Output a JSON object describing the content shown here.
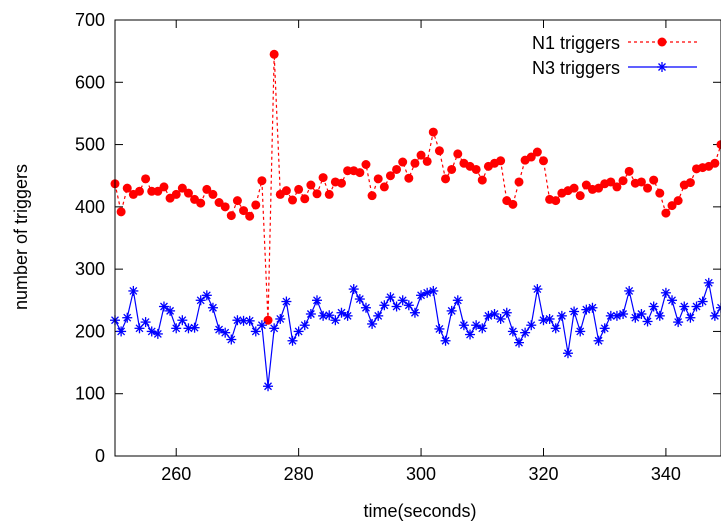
{
  "chart_data": {
    "type": "line",
    "title": "",
    "xlabel": "time(seconds)",
    "ylabel": "number of triggers",
    "xlim": [
      250,
      349
    ],
    "ylim": [
      0,
      700
    ],
    "x_ticks": [
      260,
      280,
      300,
      320,
      340
    ],
    "y_ticks": [
      0,
      100,
      200,
      300,
      400,
      500,
      600,
      700
    ],
    "grid": false,
    "legend_position": "top-right",
    "series": [
      {
        "name": "N1 triggers",
        "color": "#ff0000",
        "marker": "filled-circle",
        "line_style": "dashed",
        "x": [
          250,
          251,
          252,
          253,
          254,
          255,
          256,
          257,
          258,
          259,
          260,
          261,
          262,
          263,
          264,
          265,
          266,
          267,
          268,
          269,
          270,
          271,
          272,
          273,
          274,
          275,
          276,
          277,
          278,
          279,
          280,
          281,
          282,
          283,
          284,
          285,
          286,
          287,
          288,
          289,
          290,
          291,
          292,
          293,
          294,
          295,
          296,
          297,
          298,
          299,
          300,
          301,
          302,
          303,
          304,
          305,
          306,
          307,
          308,
          309,
          310,
          311,
          312,
          313,
          314,
          315,
          316,
          317,
          318,
          319,
          320,
          321,
          322,
          323,
          324,
          325,
          326,
          327,
          328,
          329,
          330,
          331,
          332,
          333,
          334,
          335,
          336,
          337,
          338,
          339,
          340,
          341,
          342,
          343,
          344,
          345,
          346,
          347,
          348,
          349
        ],
        "values": [
          437,
          392,
          430,
          420,
          425,
          445,
          425,
          425,
          432,
          414,
          420,
          430,
          422,
          412,
          406,
          428,
          420,
          407,
          400,
          386,
          410,
          394,
          385,
          403,
          442,
          218,
          645,
          420,
          426,
          411,
          428,
          413,
          435,
          421,
          447,
          420,
          440,
          438,
          458,
          458,
          455,
          468,
          418,
          445,
          432,
          450,
          460,
          472,
          446,
          470,
          483,
          473,
          520,
          490,
          445,
          460,
          485,
          470,
          465,
          460,
          443,
          465,
          470,
          474,
          410,
          404,
          440,
          475,
          480,
          488,
          474,
          412,
          410,
          422,
          426,
          430,
          418,
          435,
          428,
          430,
          437,
          440,
          432,
          442,
          457,
          438,
          440,
          430,
          443,
          422,
          390,
          402,
          410,
          435,
          439,
          461,
          463,
          465,
          470,
          500
        ]
      },
      {
        "name": "N3 triggers",
        "color": "#0000ff",
        "marker": "star",
        "line_style": "solid",
        "x": [
          250,
          251,
          252,
          253,
          254,
          255,
          256,
          257,
          258,
          259,
          260,
          261,
          262,
          263,
          264,
          265,
          266,
          267,
          268,
          269,
          270,
          271,
          272,
          273,
          274,
          275,
          276,
          277,
          278,
          279,
          280,
          281,
          282,
          283,
          284,
          285,
          286,
          287,
          288,
          289,
          290,
          291,
          292,
          293,
          294,
          295,
          296,
          297,
          298,
          299,
          300,
          301,
          302,
          303,
          304,
          305,
          306,
          307,
          308,
          309,
          310,
          311,
          312,
          313,
          314,
          315,
          316,
          317,
          318,
          319,
          320,
          321,
          322,
          323,
          324,
          325,
          326,
          327,
          328,
          329,
          330,
          331,
          332,
          333,
          334,
          335,
          336,
          337,
          338,
          339,
          340,
          341,
          342,
          343,
          344,
          345,
          346,
          347,
          348,
          349
        ],
        "values": [
          218,
          200,
          222,
          265,
          205,
          215,
          200,
          196,
          240,
          233,
          205,
          218,
          205,
          206,
          250,
          258,
          238,
          203,
          198,
          187,
          218,
          217,
          217,
          200,
          210,
          112,
          205,
          220,
          248,
          185,
          200,
          210,
          228,
          250,
          225,
          226,
          218,
          230,
          225,
          268,
          252,
          238,
          212,
          225,
          242,
          255,
          240,
          250,
          242,
          230,
          258,
          262,
          265,
          204,
          185,
          233,
          250,
          210,
          195,
          210,
          205,
          225,
          228,
          220,
          230,
          200,
          182,
          198,
          210,
          268,
          218,
          220,
          205,
          225,
          165,
          232,
          200,
          235,
          238,
          185,
          205,
          225,
          225,
          228,
          265,
          222,
          228,
          216,
          240,
          225,
          262,
          250,
          215,
          240,
          222,
          240,
          248,
          278,
          225,
          238
        ]
      }
    ]
  }
}
